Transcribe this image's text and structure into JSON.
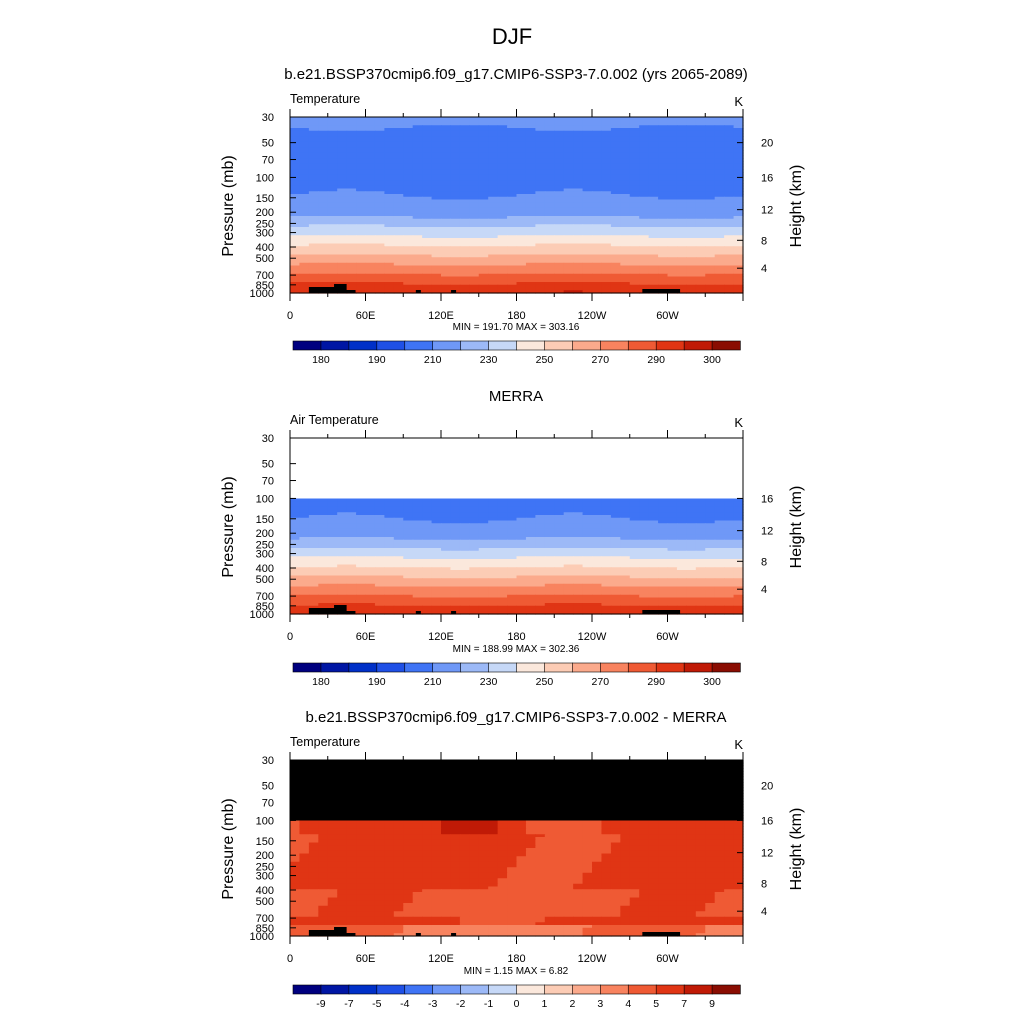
{
  "page": {
    "title": "DJF"
  },
  "colors": {
    "abs_scale": [
      "#00007f",
      "#0016a4",
      "#0030c8",
      "#1f50e6",
      "#3f74f5",
      "#6f98f7",
      "#9cb9f7",
      "#c6d8f7",
      "#fbe8dc",
      "#fcccb5",
      "#fbaa8c",
      "#f8835f",
      "#ef5a34",
      "#e03514",
      "#c01a06",
      "#8a0d02",
      "#6a0000"
    ],
    "diff_scale": [
      "#00007f",
      "#0016a4",
      "#0030c8",
      "#1f50e6",
      "#3f74f5",
      "#6f98f7",
      "#9cb9f7",
      "#c6d8f7",
      "#fbe8dc",
      "#fcccb5",
      "#fbaa8c",
      "#f8835f",
      "#ef5a34",
      "#e03514",
      "#c01a06",
      "#8a0d02",
      "#6a0000"
    ],
    "missing": "#000000"
  },
  "chart_data": [
    {
      "type": "heatmap",
      "title": "b.e21.BSSP370cmip6.f09_g17.CMIP6-SSP3-7.0.002 (yrs 2065-2089)",
      "left_label": "Temperature",
      "right_label": "K",
      "ylabel": "Pressure (mb)",
      "ylabel_right": "Height (km)",
      "x_ticks": [
        "0",
        "60E",
        "120E",
        "180",
        "120W",
        "60W"
      ],
      "y_ticks": [
        "30",
        "50",
        "70",
        "100",
        "150",
        "200",
        "250",
        "300",
        "400",
        "500",
        "700",
        "850",
        "1000"
      ],
      "height_ticks": [
        "20",
        "16",
        "12",
        "8",
        "4"
      ],
      "stats": "MIN = 191.70  MAX = 303.16",
      "colorbar_labels": [
        "180",
        "190",
        "210",
        "230",
        "250",
        "270",
        "290",
        "300"
      ],
      "data_top_hpa": 30,
      "data_min": 191.7,
      "data_max": 303.16
    },
    {
      "type": "heatmap",
      "title": "MERRA",
      "left_label": "Air Temperature",
      "right_label": "K",
      "ylabel": "Pressure (mb)",
      "ylabel_right": "Height (km)",
      "x_ticks": [
        "0",
        "60E",
        "120E",
        "180",
        "120W",
        "60W"
      ],
      "y_ticks": [
        "30",
        "50",
        "70",
        "100",
        "150",
        "200",
        "250",
        "300",
        "400",
        "500",
        "700",
        "850",
        "1000"
      ],
      "height_ticks": [
        "16",
        "12",
        "8",
        "4"
      ],
      "stats": "MIN = 188.99  MAX = 302.36",
      "colorbar_labels": [
        "180",
        "190",
        "210",
        "230",
        "250",
        "270",
        "290",
        "300"
      ],
      "data_top_hpa": 100,
      "data_min": 188.99,
      "data_max": 302.36
    },
    {
      "type": "heatmap",
      "title": "b.e21.BSSP370cmip6.f09_g17.CMIP6-SSP3-7.0.002 - MERRA",
      "left_label": "Temperature",
      "right_label": "K",
      "ylabel": "Pressure (mb)",
      "ylabel_right": "Height (km)",
      "x_ticks": [
        "0",
        "60E",
        "120E",
        "180",
        "120W",
        "60W"
      ],
      "y_ticks": [
        "30",
        "50",
        "70",
        "100",
        "150",
        "200",
        "250",
        "300",
        "400",
        "500",
        "700",
        "850",
        "1000"
      ],
      "height_ticks": [
        "20",
        "16",
        "12",
        "8",
        "4"
      ],
      "stats": "MIN =   1.15  MAX =   6.82",
      "colorbar_labels": [
        "-9",
        "-7",
        "-5",
        "-4",
        "-3",
        "-2",
        "-1",
        "0",
        "1",
        "2",
        "3",
        "4",
        "5",
        "7",
        "9"
      ],
      "data_top_hpa": 100,
      "data_min": 1.15,
      "data_max": 6.82
    }
  ]
}
